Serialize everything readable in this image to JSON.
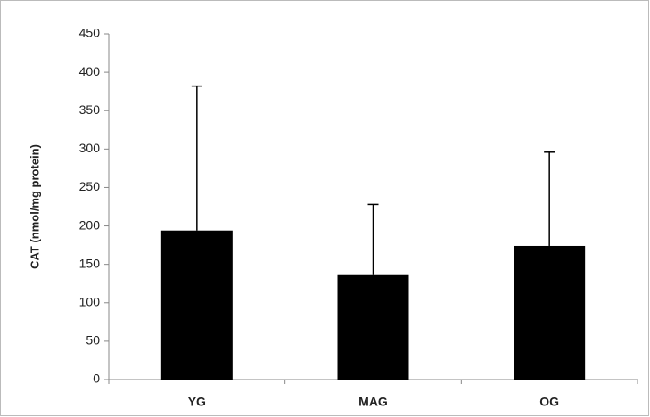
{
  "chart_data": {
    "type": "bar",
    "y_label": "CAT (nmol/mg protein)",
    "categories": [
      "YG",
      "MAG",
      "OG"
    ],
    "values": [
      194,
      136,
      174
    ],
    "errors": [
      188,
      92,
      122
    ],
    "color": "#000000",
    "ylim": [
      0,
      450
    ],
    "yticks": [
      0,
      50,
      100,
      150,
      200,
      250,
      300,
      350,
      400,
      450
    ]
  }
}
